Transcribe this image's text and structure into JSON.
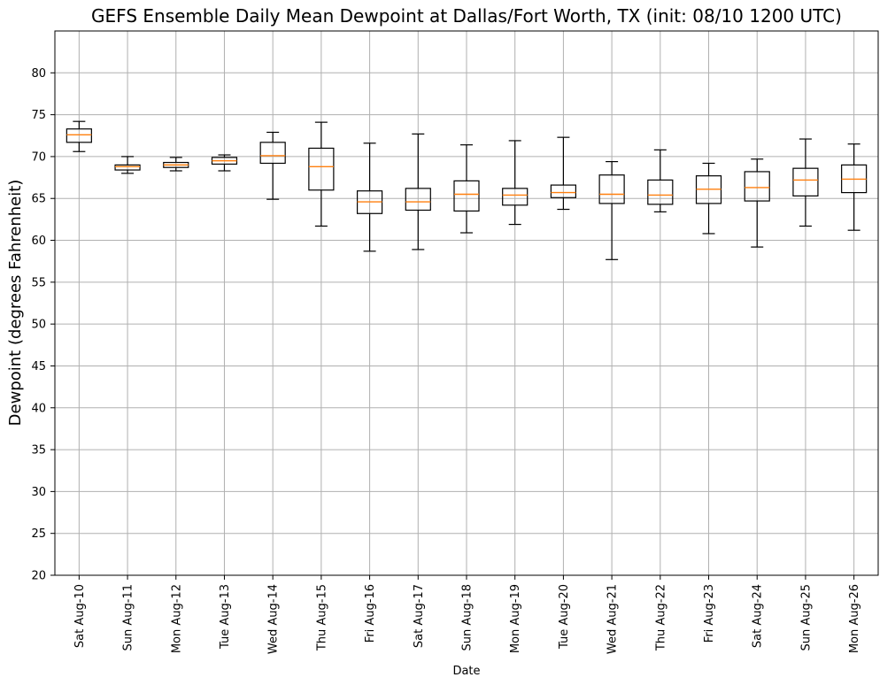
{
  "chart_data": {
    "type": "box",
    "title": "GEFS Ensemble Daily Mean Dewpoint at Dallas/Fort Worth, TX (init: 08/10 1200 UTC)",
    "xlabel": "Date",
    "ylabel": "Dewpoint (degrees Fahrenheit)",
    "ylim": [
      20,
      85
    ],
    "yticks": [
      20,
      25,
      30,
      35,
      40,
      45,
      50,
      55,
      60,
      65,
      70,
      75,
      80
    ],
    "grid": true,
    "colors": {
      "box": "#000000",
      "median": "#ff7f0e",
      "grid": "#b0b0b0"
    },
    "categories": [
      "Sat Aug-10",
      "Sun Aug-11",
      "Mon Aug-12",
      "Tue Aug-13",
      "Wed Aug-14",
      "Thu Aug-15",
      "Fri Aug-16",
      "Sat Aug-17",
      "Sun Aug-18",
      "Mon Aug-19",
      "Tue Aug-20",
      "Wed Aug-21",
      "Thu Aug-22",
      "Fri Aug-23",
      "Sat Aug-24",
      "Sun Aug-25",
      "Mon Aug-26"
    ],
    "boxes": [
      {
        "min": 70.6,
        "q1": 71.7,
        "median": 72.6,
        "q3": 73.3,
        "max": 74.2
      },
      {
        "min": 68.0,
        "q1": 68.4,
        "median": 68.8,
        "q3": 69.0,
        "max": 70.0
      },
      {
        "min": 68.3,
        "q1": 68.7,
        "median": 69.0,
        "q3": 69.3,
        "max": 69.9
      },
      {
        "min": 68.3,
        "q1": 69.1,
        "median": 69.5,
        "q3": 69.9,
        "max": 70.2
      },
      {
        "min": 64.9,
        "q1": 69.2,
        "median": 70.1,
        "q3": 71.7,
        "max": 72.9
      },
      {
        "min": 61.7,
        "q1": 66.0,
        "median": 68.8,
        "q3": 71.0,
        "max": 74.1
      },
      {
        "min": 58.7,
        "q1": 63.2,
        "median": 64.6,
        "q3": 65.9,
        "max": 71.6
      },
      {
        "min": 58.9,
        "q1": 63.6,
        "median": 64.6,
        "q3": 66.2,
        "max": 72.7
      },
      {
        "min": 60.9,
        "q1": 63.5,
        "median": 65.5,
        "q3": 67.1,
        "max": 71.4
      },
      {
        "min": 61.9,
        "q1": 64.2,
        "median": 65.4,
        "q3": 66.2,
        "max": 71.9
      },
      {
        "min": 63.7,
        "q1": 65.1,
        "median": 65.7,
        "q3": 66.6,
        "max": 72.3
      },
      {
        "min": 57.7,
        "q1": 64.4,
        "median": 65.5,
        "q3": 67.8,
        "max": 69.4
      },
      {
        "min": 63.4,
        "q1": 64.3,
        "median": 65.4,
        "q3": 67.2,
        "max": 70.8
      },
      {
        "min": 60.8,
        "q1": 64.4,
        "median": 66.1,
        "q3": 67.7,
        "max": 69.2
      },
      {
        "min": 59.2,
        "q1": 64.7,
        "median": 66.3,
        "q3": 68.2,
        "max": 69.7
      },
      {
        "min": 61.7,
        "q1": 65.3,
        "median": 67.2,
        "q3": 68.6,
        "max": 72.1
      },
      {
        "min": 61.2,
        "q1": 65.7,
        "median": 67.3,
        "q3": 69.0,
        "max": 71.5
      }
    ]
  }
}
